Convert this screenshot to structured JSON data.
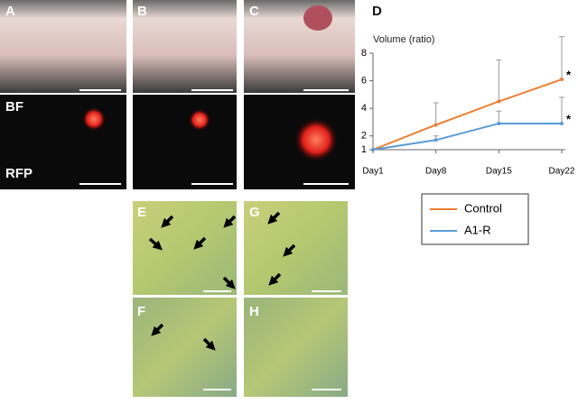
{
  "labels": [
    "A",
    "B",
    "C",
    "D",
    "E",
    "F",
    "G",
    "H"
  ],
  "row_labels": [
    "BF",
    "RFP"
  ],
  "chart_data": {
    "type": "line",
    "y_label": "Volume (ratio)",
    "categories": [
      "Day1",
      "Day8",
      "Day15",
      "Day22"
    ],
    "series": [
      {
        "name": "Control",
        "color": "#ed7d31",
        "values": [
          1,
          2.8,
          4.5,
          6.1
        ],
        "errors": [
          null,
          1.6,
          3.0,
          3.1
        ]
      },
      {
        "name": "A1-R",
        "color": "#5b9bd5",
        "values": [
          1,
          1.7,
          2.9,
          2.9
        ],
        "errors": [
          null,
          0.3,
          0.9,
          1.9
        ]
      }
    ],
    "annotations": [
      "*",
      "*"
    ],
    "ylim": [
      1,
      8
    ],
    "yticks": [
      1,
      2,
      4,
      6,
      8
    ]
  }
}
